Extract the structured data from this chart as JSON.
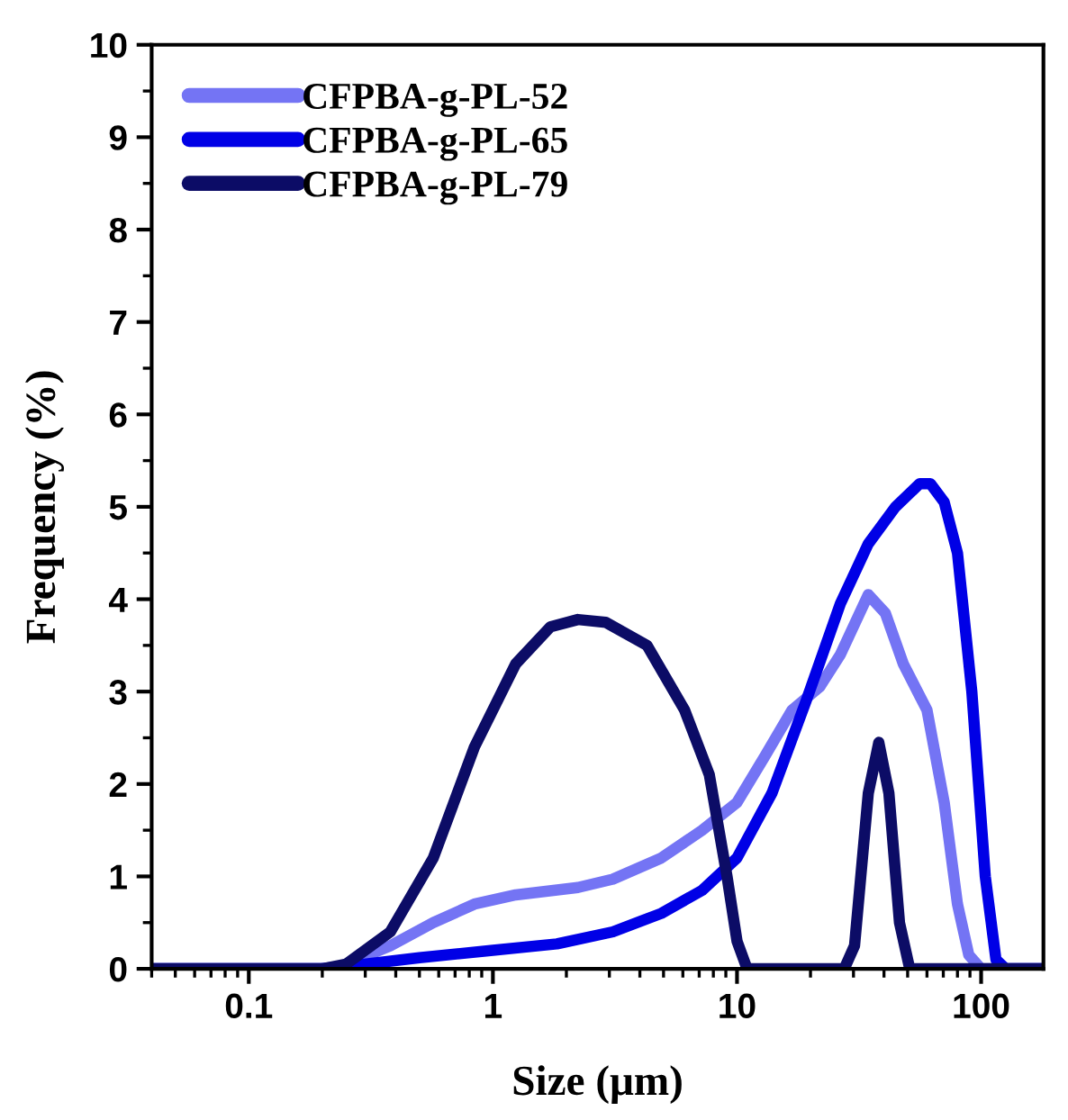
{
  "chart_data": {
    "type": "line",
    "xlabel": "Size (μm)",
    "ylabel": "Frequency (%)",
    "log": "x",
    "xlim": [
      0.04,
      180
    ],
    "ylim": [
      0,
      10
    ],
    "xticks": [
      0.1,
      1,
      10,
      100
    ],
    "yticks": [
      0,
      1,
      2,
      3,
      4,
      5,
      6,
      7,
      8,
      9,
      10
    ],
    "grid": false,
    "legend": "top left",
    "marker": "none",
    "line_style": "solid",
    "series": [
      {
        "name": "CFPBA-g-PL-52",
        "color": "#7474f4",
        "x": [
          0.04,
          0.2,
          0.24,
          0.38,
          0.57,
          0.84,
          1.24,
          2.23,
          3.1,
          4.9,
          7.2,
          10,
          13,
          16.8,
          21.8,
          26.5,
          34.5,
          40.5,
          48,
          60,
          70.6,
          80,
          89,
          100,
          180
        ],
        "values": [
          0,
          0,
          0.03,
          0.25,
          0.5,
          0.7,
          0.8,
          0.88,
          0.97,
          1.2,
          1.5,
          1.8,
          2.3,
          2.8,
          3.05,
          3.4,
          4.05,
          3.85,
          3.3,
          2.8,
          1.8,
          0.7,
          0.15,
          0,
          0
        ]
      },
      {
        "name": "CFPBA-g-PL-65",
        "color": "#0000e6",
        "x": [
          0.04,
          0.2,
          0.24,
          0.5,
          1,
          1.83,
          3.1,
          4.9,
          7.2,
          10,
          13.9,
          19.2,
          26.5,
          34.5,
          44.6,
          56,
          62,
          70.6,
          80,
          91.6,
          104,
          115,
          126,
          180
        ],
        "values": [
          0,
          0,
          0.02,
          0.12,
          0.2,
          0.27,
          0.4,
          0.6,
          0.85,
          1.2,
          1.9,
          2.9,
          3.95,
          4.6,
          5.0,
          5.25,
          5.25,
          5.05,
          4.5,
          3.0,
          1.0,
          0.1,
          0,
          0
        ]
      },
      {
        "name": "CFPBA-g-PL-79",
        "color": "#0c0c66",
        "x": [
          0.04,
          0.2,
          0.25,
          0.38,
          0.57,
          0.84,
          1.24,
          1.72,
          2.23,
          2.9,
          4.28,
          6.1,
          7.7,
          9.1,
          10,
          11,
          27.5,
          30.3,
          34.5,
          38.1,
          41.9,
          46.3,
          51,
          180
        ],
        "values": [
          0,
          0,
          0.05,
          0.4,
          1.2,
          2.4,
          3.3,
          3.7,
          3.78,
          3.75,
          3.5,
          2.8,
          2.1,
          1.0,
          0.3,
          0,
          0,
          0.25,
          1.9,
          2.45,
          1.9,
          0.5,
          0,
          0
        ]
      }
    ]
  }
}
